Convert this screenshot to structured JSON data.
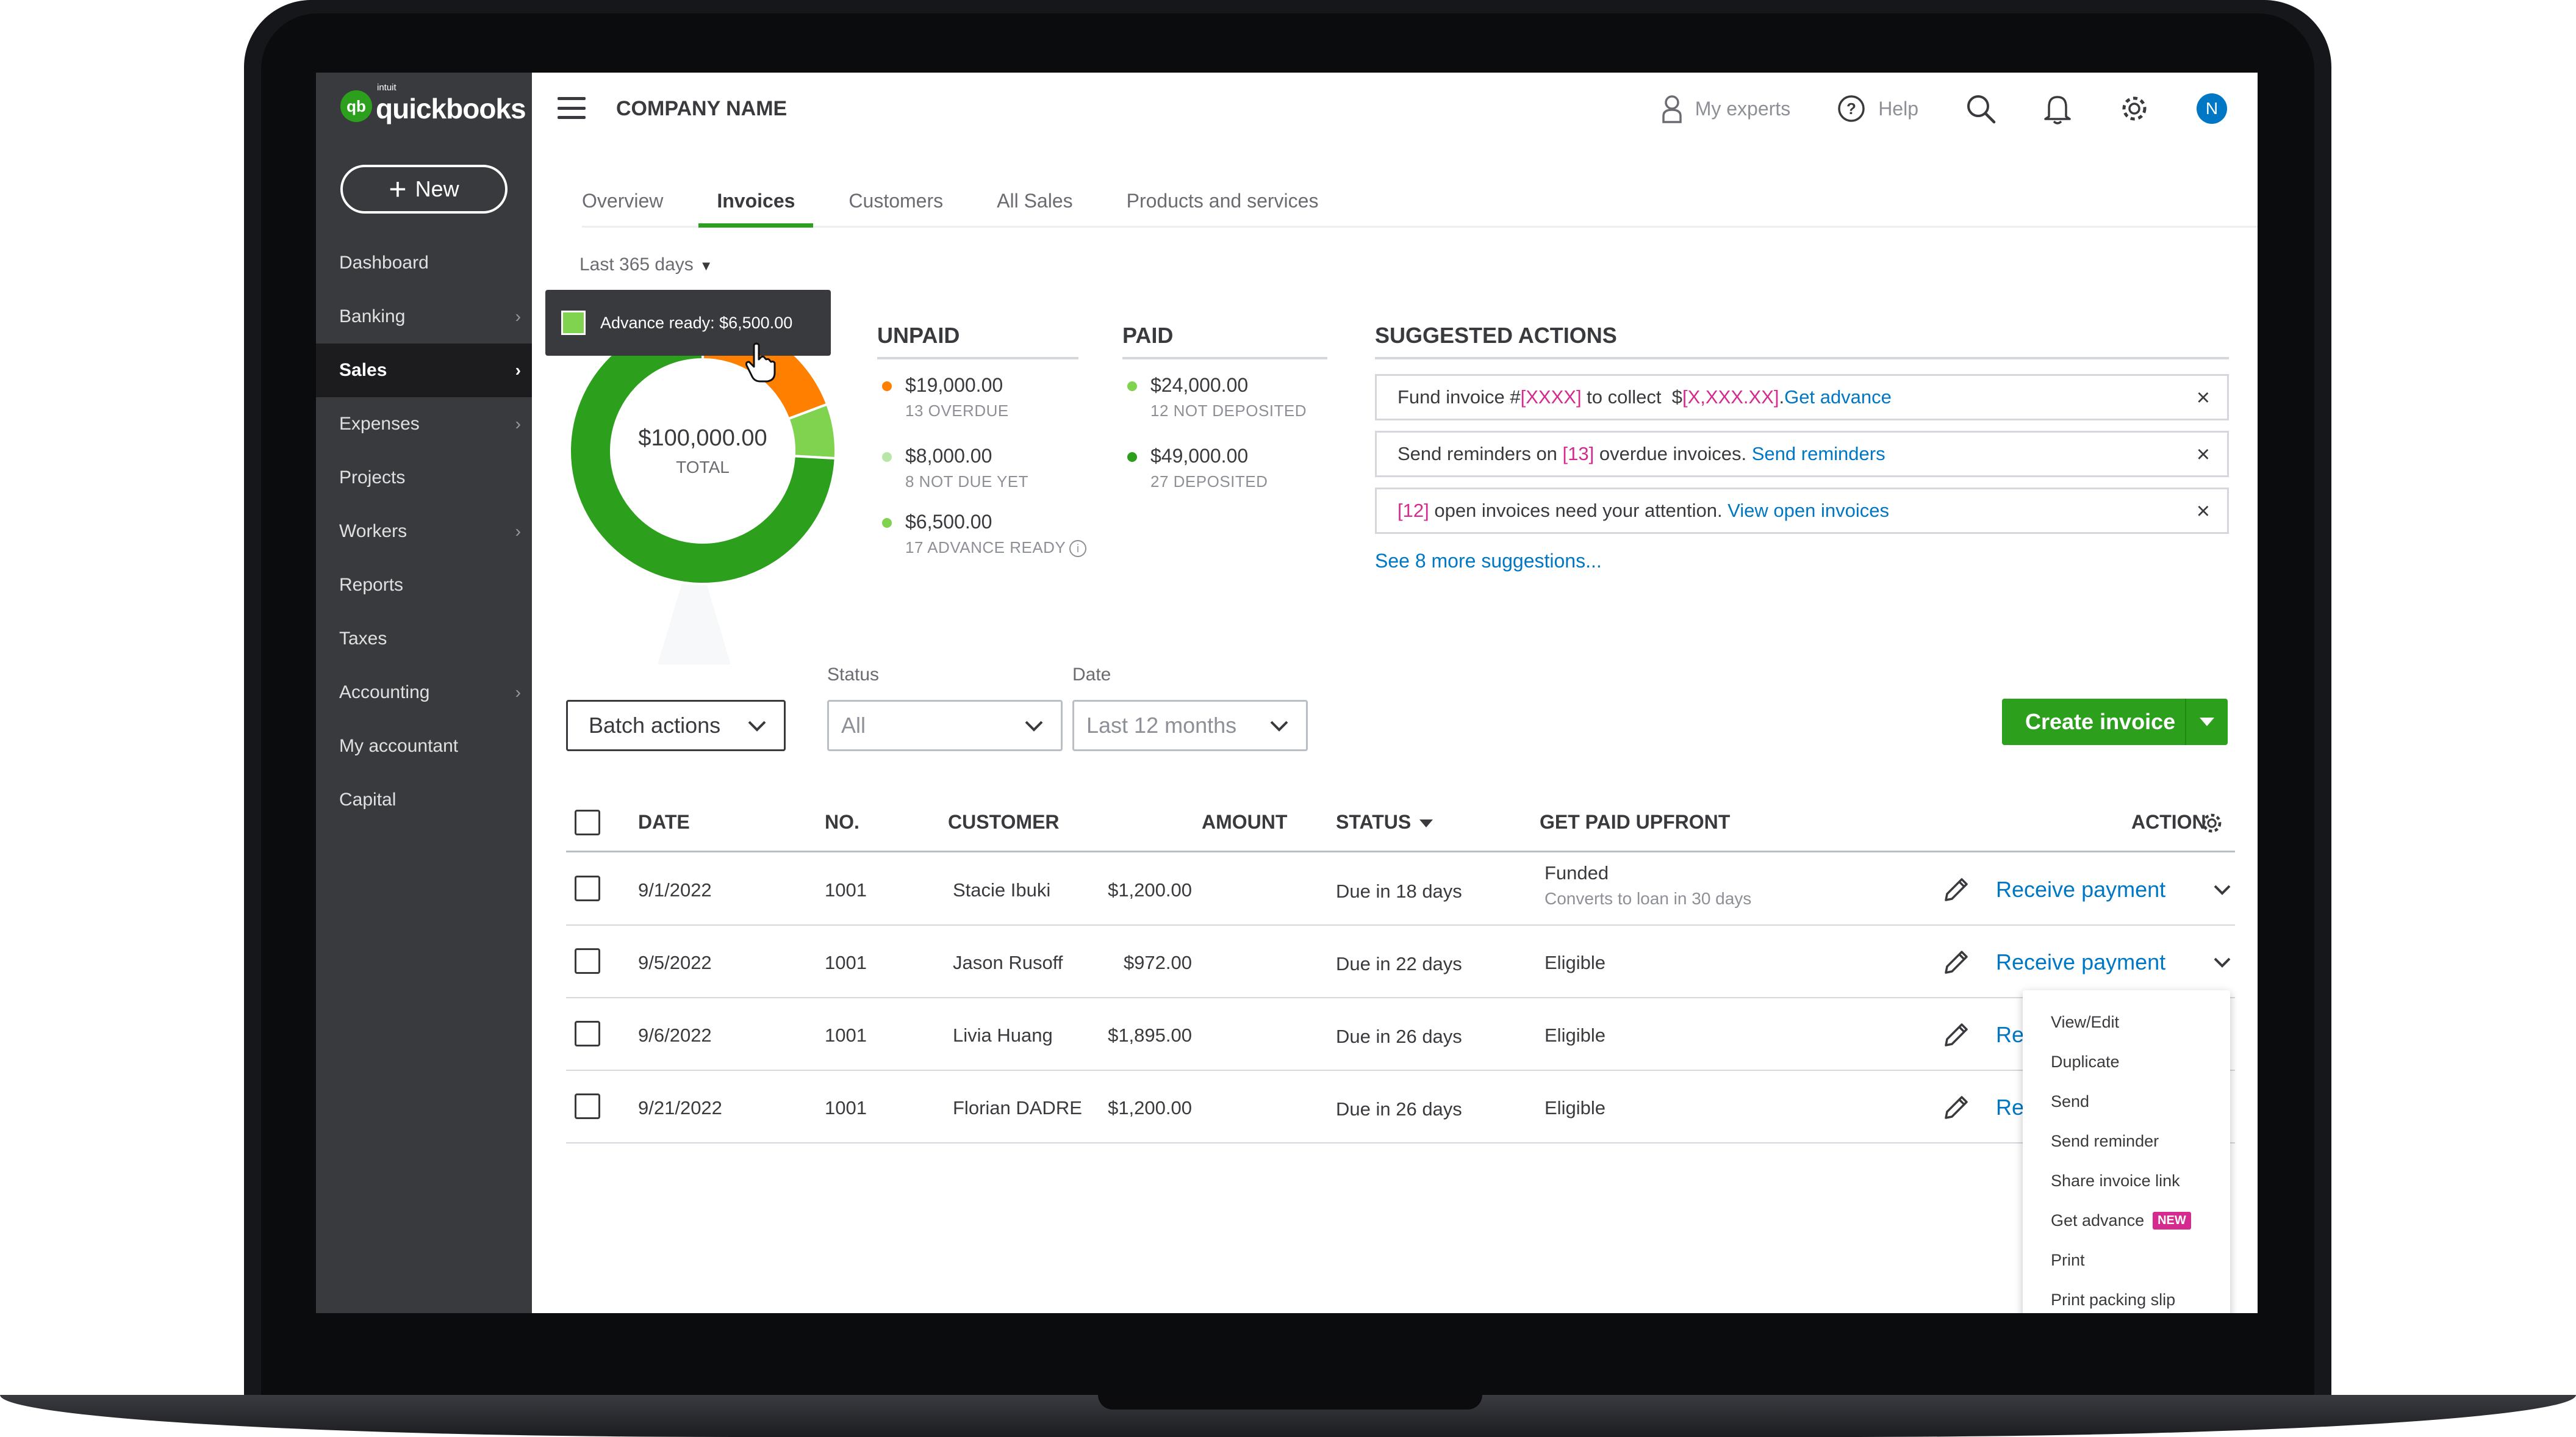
{
  "app": {
    "brand": "quickbooks",
    "brand_prefix": "intuit",
    "brand_mark": "qb",
    "company": "COMPANY NAME",
    "accent_color": "#2ca01c",
    "link_color": "#0077c5"
  },
  "sidebar": {
    "new_label": "New",
    "items": [
      {
        "label": "Dashboard",
        "chevron": ""
      },
      {
        "label": "Banking",
        "chevron": "›"
      },
      {
        "label": "Sales",
        "chevron": "›"
      },
      {
        "label": "Expenses",
        "chevron": "›"
      },
      {
        "label": "Projects",
        "chevron": ""
      },
      {
        "label": "Workers",
        "chevron": "›"
      },
      {
        "label": "Reports",
        "chevron": ""
      },
      {
        "label": "Taxes",
        "chevron": ""
      },
      {
        "label": "Accounting",
        "chevron": "›"
      },
      {
        "label": "My accountant",
        "chevron": ""
      },
      {
        "label": "Capital",
        "chevron": ""
      }
    ]
  },
  "header": {
    "my_experts": "My experts",
    "help": "Help",
    "avatar_initial": "N"
  },
  "tabs": [
    "Overview",
    "Invoices",
    "Customers",
    "All Sales",
    "Products and services"
  ],
  "date_filter": "Last 365 days",
  "summary": {
    "tooltip": "Advance ready: $6,500.00",
    "total_value": "$100,000.00",
    "total_label": "TOTAL",
    "donut_segments": [
      {
        "name": "Paid",
        "value": 73000,
        "color": "#2ca01c"
      },
      {
        "name": "Overdue",
        "value": 19000,
        "color": "#ff8000"
      },
      {
        "name": "Advance ready",
        "value": 6500,
        "color": "#7fd34e"
      }
    ],
    "unpaid_title": "UNPAID",
    "unpaid": [
      {
        "value": "$19,000.00",
        "sub": "13 OVERDUE",
        "color": "#ff8000"
      },
      {
        "value": "$8,000.00",
        "sub": "8 NOT DUE YET",
        "color": "#b8e6a8"
      },
      {
        "value": "$6,500.00",
        "sub": "17 ADVANCE READY",
        "color": "#7fd34e"
      }
    ],
    "paid_title": "PAID",
    "paid": [
      {
        "value": "$24,000.00",
        "sub": "12 NOT DEPOSITED",
        "color": "#7fd34e"
      },
      {
        "value": "$49,000.00",
        "sub": "27 DEPOSITED",
        "color": "#2ca01c"
      }
    ]
  },
  "suggested": {
    "title": "SUGGESTED ACTIONS",
    "items": [
      {
        "pre": "Fund invoice #",
        "hl": "[XXXX]",
        "mid": " to collect  $",
        "hl2": "[X,XXX.XX]",
        "post": ".",
        "link": "Get advance"
      },
      {
        "pre": "Send reminders on ",
        "hl": "[13]",
        "mid": " overdue invoices. ",
        "hl2": "",
        "post": "",
        "link": "Send reminders"
      },
      {
        "pre": "",
        "hl": "[12]",
        "mid": " open invoices need your attention. ",
        "hl2": "",
        "post": "",
        "link": "View open invoices"
      }
    ],
    "more": "See 8 more suggestions..."
  },
  "filters": {
    "batch_label": "Batch actions",
    "status_label": "Status",
    "status_value": "All",
    "date_label": "Date",
    "date_value": "Last 12 months",
    "create_label": "Create invoice"
  },
  "table": {
    "headers": {
      "date": "DATE",
      "no": "NO.",
      "customer": "CUSTOMER",
      "amount": "AMOUNT",
      "status": "STATUS",
      "upfront": "GET PAID UPFRONT",
      "action": "ACTION"
    },
    "rows": [
      {
        "date": "9/1/2022",
        "no": "1001",
        "customer": "Stacie Ibuki",
        "amount": "$1,200.00",
        "status": "Due in 18 days",
        "upfront": "Funded",
        "upfront_sub": "Converts to loan in 30 days",
        "action": "Receive payment"
      },
      {
        "date": "9/5/2022",
        "no": "1001",
        "customer": "Jason Rusoff",
        "amount": "$972.00",
        "status": "Due in 22 days",
        "upfront": "Eligible",
        "upfront_sub": "",
        "action": "Receive payment"
      },
      {
        "date": "9/6/2022",
        "no": "1001",
        "customer": "Livia Huang",
        "amount": "$1,895.00",
        "status": "Due in 26 days",
        "upfront": "Eligible",
        "upfront_sub": "",
        "action": "Re"
      },
      {
        "date": "9/21/2022",
        "no": "1001",
        "customer": "Florian DADRE",
        "amount": "$1,200.00",
        "status": "Due in 26 days",
        "upfront": "Eligible",
        "upfront_sub": "",
        "action": "Re"
      }
    ]
  },
  "action_menu": {
    "items": [
      "View/Edit",
      "Duplicate",
      "Send",
      "Send reminder",
      "Share invoice link",
      "Get advance",
      "Print",
      "Print packing slip"
    ],
    "new_badge": "NEW"
  }
}
